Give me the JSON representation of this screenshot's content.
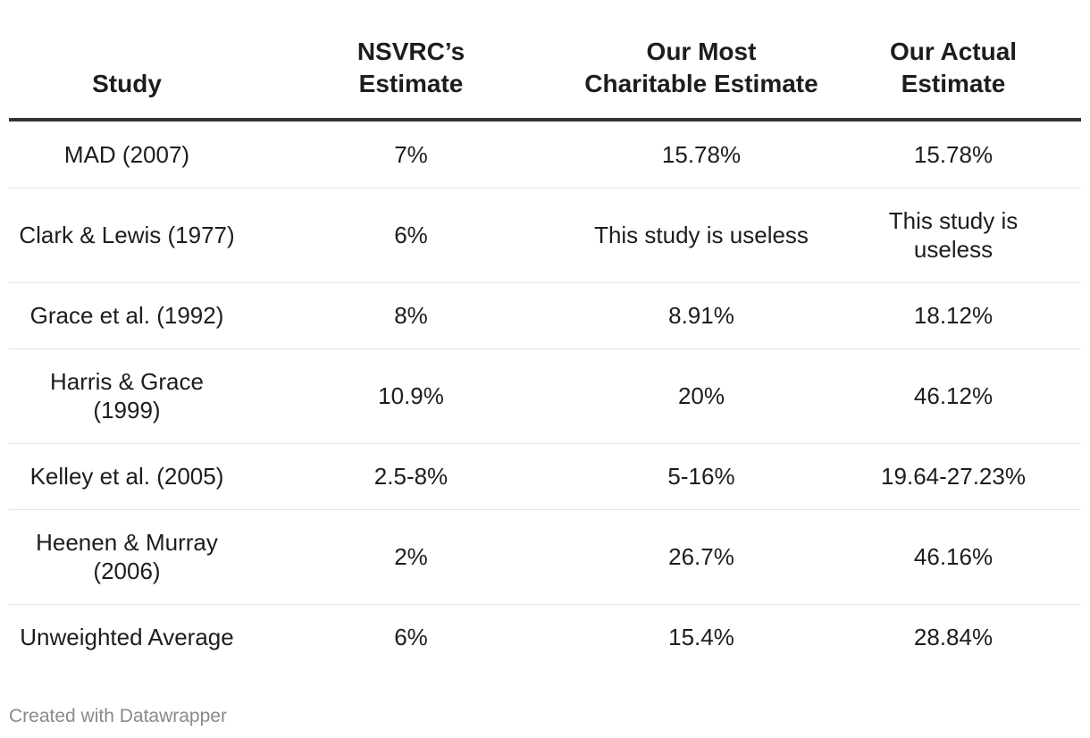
{
  "chart_data": {
    "type": "table",
    "columns": [
      {
        "lines": [
          "Study"
        ]
      },
      {
        "lines": [
          "NSVRC’s",
          "Estimate"
        ]
      },
      {
        "lines": [
          "Our Most",
          "Charitable Estimate"
        ]
      },
      {
        "lines": [
          "Our Actual",
          "Estimate"
        ]
      }
    ],
    "rows": [
      {
        "study": "MAD (2007)",
        "nsvrc": "7%",
        "charitable": "15.78%",
        "actual": "15.78%"
      },
      {
        "study": "Clark & Lewis (1977)",
        "nsvrc": "6%",
        "charitable": "This study is useless",
        "actual": "This study is useless"
      },
      {
        "study": "Grace et al. (1992)",
        "nsvrc": "8%",
        "charitable": "8.91%",
        "actual": "18.12%"
      },
      {
        "study": "Harris & Grace (1999)",
        "nsvrc": "10.9%",
        "charitable": "20%",
        "actual": "46.12%"
      },
      {
        "study": "Kelley et al. (2005)",
        "nsvrc": "2.5-8%",
        "charitable": "5-16%",
        "actual": "19.64-27.23%"
      },
      {
        "study": "Heenen & Murray (2006)",
        "nsvrc": "2%",
        "charitable": "26.7%",
        "actual": "46.16%"
      },
      {
        "study": "Unweighted Average",
        "nsvrc": "6%",
        "charitable": "15.4%",
        "actual": "28.84%"
      }
    ]
  },
  "footer": {
    "credit": "Created with Datawrapper"
  }
}
